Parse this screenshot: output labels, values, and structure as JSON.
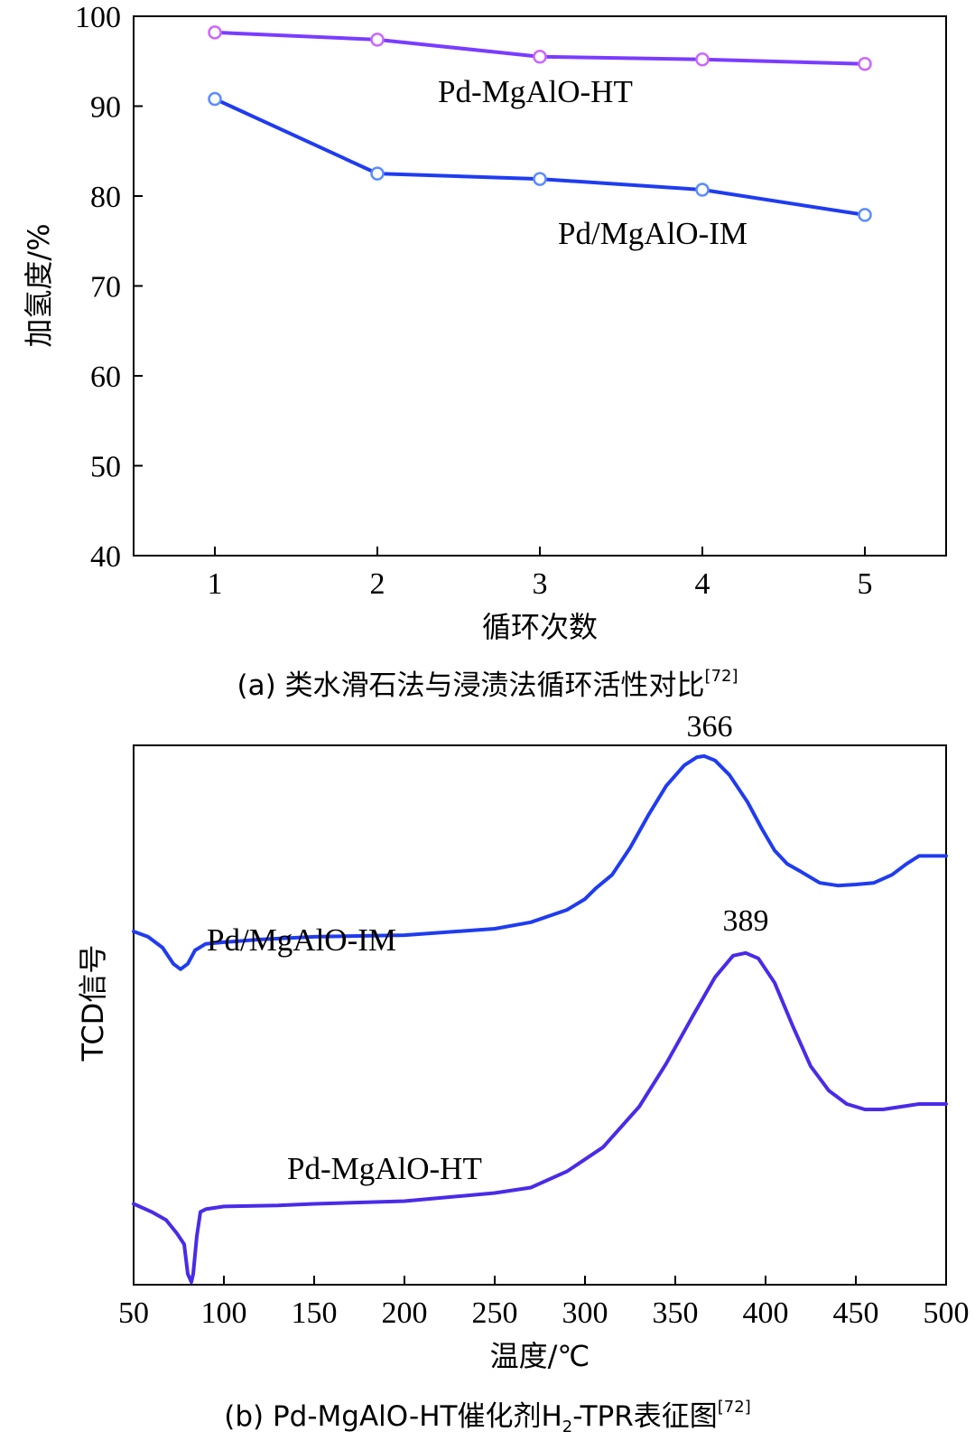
{
  "chart_data": [
    {
      "type": "line",
      "panel": "(a)",
      "caption": {
        "prefix": "(a) 类水滑石法与浸渍法循环活性对比",
        "ref": "[72]"
      },
      "xlabel": "循环次数",
      "ylabel": "加氢度/%",
      "x": [
        1,
        2,
        3,
        4,
        5
      ],
      "xticks": [
        "1",
        "2",
        "3",
        "4",
        "5"
      ],
      "xlim": [
        0.5,
        5.5
      ],
      "ylim": [
        40,
        100
      ],
      "yticks": [
        "40",
        "50",
        "60",
        "70",
        "80",
        "90",
        "100"
      ],
      "series": [
        {
          "name": "Pd-MgAlO-HT",
          "color": "#7a3cff",
          "marker": "#cc66ff",
          "values": [
            98.2,
            97.4,
            95.5,
            95.2,
            94.7
          ]
        },
        {
          "name": "Pd/MgAlO-IM",
          "color": "#1f3cf0",
          "marker": "#5a8cff",
          "values": [
            90.8,
            82.5,
            81.9,
            80.7,
            77.9
          ]
        }
      ],
      "grid": false
    },
    {
      "type": "line",
      "panel": "(b)",
      "caption": {
        "prefix": "(b) Pd-MgAlO-HT催化剂H",
        "sub": "2",
        "suffix": "-TPR表征图",
        "ref": "[72]"
      },
      "xlabel": "温度/℃",
      "ylabel": "TCD信号",
      "xlim": [
        50,
        500
      ],
      "xticks": [
        "50",
        "100",
        "150",
        "200",
        "250",
        "300",
        "350",
        "400",
        "450",
        "500"
      ],
      "yticks": [],
      "annotations": [
        "366",
        "389"
      ],
      "series": [
        {
          "name": "Pd/MgAlO-IM",
          "color": "#1f3cf0",
          "peak": 366,
          "x": [
            50,
            58,
            66,
            72,
            76,
            80,
            84,
            90,
            100,
            120,
            150,
            200,
            250,
            270,
            290,
            300,
            306,
            315,
            325,
            335,
            345,
            355,
            362,
            366,
            372,
            380,
            390,
            398,
            405,
            412,
            420,
            430,
            440,
            450,
            460,
            470,
            478,
            485,
            490,
            500
          ],
          "values": [
            0.655,
            0.645,
            0.625,
            0.595,
            0.585,
            0.595,
            0.62,
            0.632,
            0.635,
            0.64,
            0.645,
            0.648,
            0.66,
            0.672,
            0.695,
            0.715,
            0.735,
            0.76,
            0.81,
            0.87,
            0.925,
            0.963,
            0.978,
            0.98,
            0.972,
            0.945,
            0.895,
            0.845,
            0.805,
            0.78,
            0.765,
            0.745,
            0.74,
            0.742,
            0.745,
            0.76,
            0.78,
            0.795,
            0.795,
            0.795
          ]
        },
        {
          "name": "Pd-MgAlO-HT",
          "color": "#4a2be8",
          "peak": 389,
          "x": [
            50,
            60,
            68,
            74,
            78,
            80,
            82,
            83,
            85,
            87,
            90,
            100,
            130,
            150,
            200,
            250,
            270,
            290,
            310,
            330,
            345,
            360,
            372,
            382,
            389,
            396,
            405,
            415,
            425,
            435,
            445,
            455,
            465,
            475,
            485,
            500
          ],
          "values": [
            0.15,
            0.135,
            0.12,
            0.095,
            0.075,
            0.02,
            0.005,
            0.02,
            0.09,
            0.135,
            0.14,
            0.145,
            0.147,
            0.15,
            0.155,
            0.17,
            0.18,
            0.21,
            0.255,
            0.33,
            0.41,
            0.5,
            0.57,
            0.61,
            0.615,
            0.605,
            0.56,
            0.48,
            0.405,
            0.36,
            0.335,
            0.325,
            0.325,
            0.33,
            0.335,
            0.335
          ]
        }
      ],
      "grid": false
    }
  ]
}
